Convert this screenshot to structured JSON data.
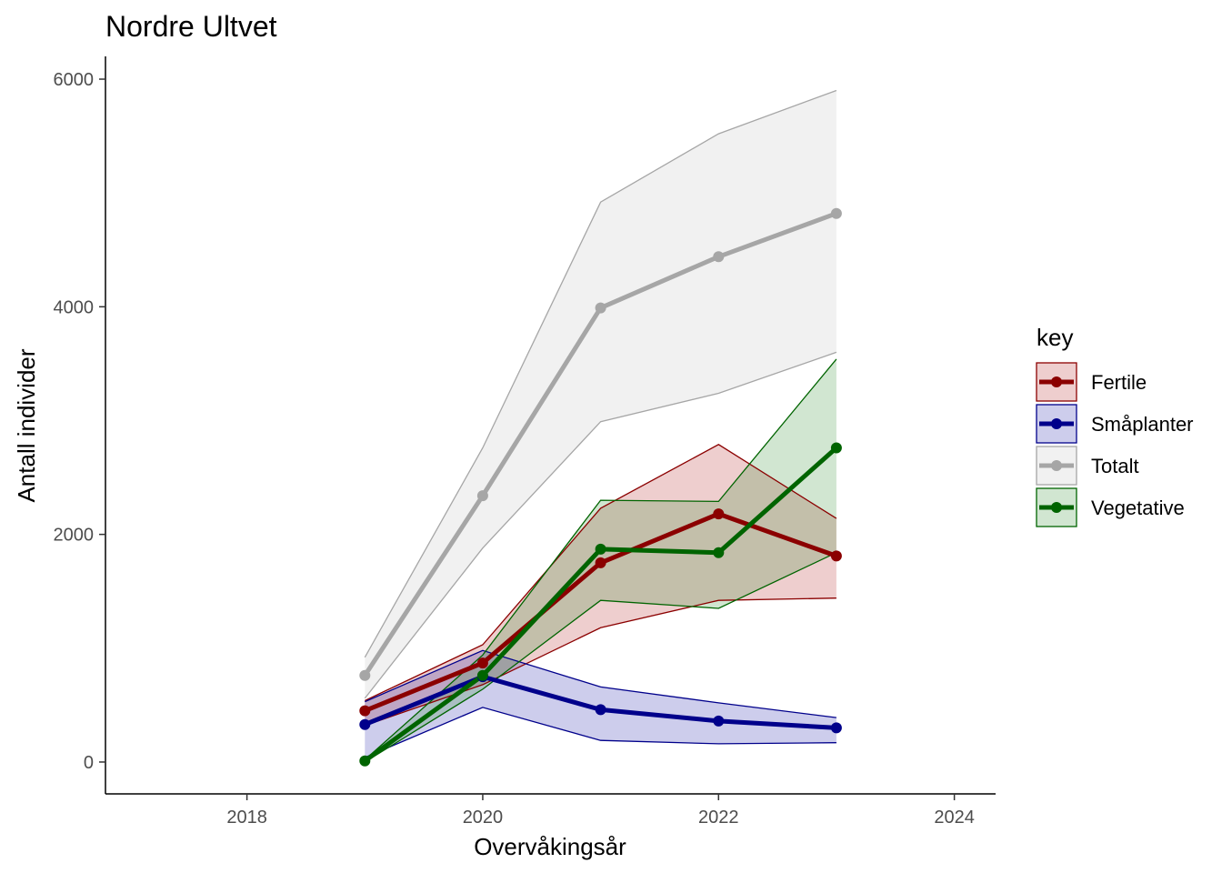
{
  "chart_data": {
    "type": "line",
    "title": "Nordre Ultvet",
    "xlabel": "Overvåkingsår",
    "ylabel": "Antall individer",
    "xlim": [
      2016.8,
      2024.35
    ],
    "ylim": [
      -280,
      6200
    ],
    "x_ticks": [
      2018,
      2020,
      2022,
      2024
    ],
    "y_ticks": [
      0,
      2000,
      4000,
      6000
    ],
    "x_tick_labels": [
      "2018",
      "2020",
      "2022",
      "2024"
    ],
    "y_tick_labels": [
      "0",
      "2000",
      "4000",
      "6000"
    ],
    "grid": false,
    "legend": {
      "title": "key",
      "position": "right"
    },
    "series": [
      {
        "name": "Totalt",
        "color": "#a6a6a6",
        "fill": "#bfbfbf",
        "x": [
          2019,
          2020,
          2021,
          2022,
          2023
        ],
        "values": [
          760,
          2340,
          3990,
          4440,
          4820
        ],
        "lower": [
          560,
          1880,
          2990,
          3240,
          3600
        ],
        "upper": [
          920,
          2760,
          4920,
          5520,
          5900
        ]
      },
      {
        "name": "Fertile",
        "color": "#8b0000",
        "fill": "#b22222",
        "x": [
          2019,
          2020,
          2021,
          2022,
          2023
        ],
        "values": [
          450,
          870,
          1750,
          2180,
          1810
        ],
        "lower": [
          320,
          680,
          1180,
          1420,
          1440
        ],
        "upper": [
          540,
          1030,
          2230,
          2790,
          2140
        ]
      },
      {
        "name": "Småplanter",
        "color": "#00008b",
        "fill": "#1a1aa8",
        "x": [
          2019,
          2020,
          2021,
          2022,
          2023
        ],
        "values": [
          330,
          750,
          460,
          360,
          300
        ],
        "lower": [
          40,
          480,
          190,
          160,
          170
        ],
        "upper": [
          530,
          980,
          660,
          520,
          390
        ]
      },
      {
        "name": "Vegetative",
        "color": "#006400",
        "fill": "#2e8b2e",
        "x": [
          2019,
          2020,
          2021,
          2022,
          2023
        ],
        "values": [
          10,
          760,
          1870,
          1840,
          2760
        ],
        "lower": [
          0,
          640,
          1420,
          1350,
          1840
        ],
        "upper": [
          20,
          940,
          2300,
          2290,
          3540
        ]
      }
    ],
    "legend_order": [
      "Fertile",
      "Småplanter",
      "Totalt",
      "Vegetative"
    ],
    "draw_order": [
      "Totalt",
      "Fertile",
      "Småplanter",
      "Vegetative"
    ]
  }
}
